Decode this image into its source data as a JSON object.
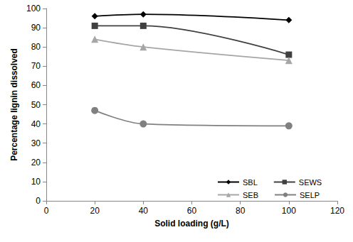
{
  "chart_data": {
    "type": "line",
    "x_label": "Solid loading (g/L)",
    "y_label": "Percentage lignin dissolved",
    "x": [
      20,
      40,
      100
    ],
    "series": [
      {
        "name": "SBL",
        "color": "#000000",
        "marker": "diamond",
        "values": [
          96,
          97,
          94
        ]
      },
      {
        "name": "SEWS",
        "color": "#404040",
        "marker": "square",
        "values": [
          91,
          91,
          76
        ]
      },
      {
        "name": "SEB",
        "color": "#a6a6a6",
        "marker": "triangle",
        "values": [
          84,
          80,
          73
        ]
      },
      {
        "name": "SELP",
        "color": "#808080",
        "marker": "circle",
        "values": [
          47,
          40,
          39
        ]
      }
    ],
    "xlim": [
      0,
      120
    ],
    "xticks": [
      0,
      20,
      40,
      60,
      80,
      100,
      120
    ],
    "ylim": [
      0,
      100
    ],
    "yticks": [
      0,
      10,
      20,
      30,
      40,
      50,
      60,
      70,
      80,
      90,
      100
    ],
    "grid": false,
    "legend": "lower right"
  }
}
